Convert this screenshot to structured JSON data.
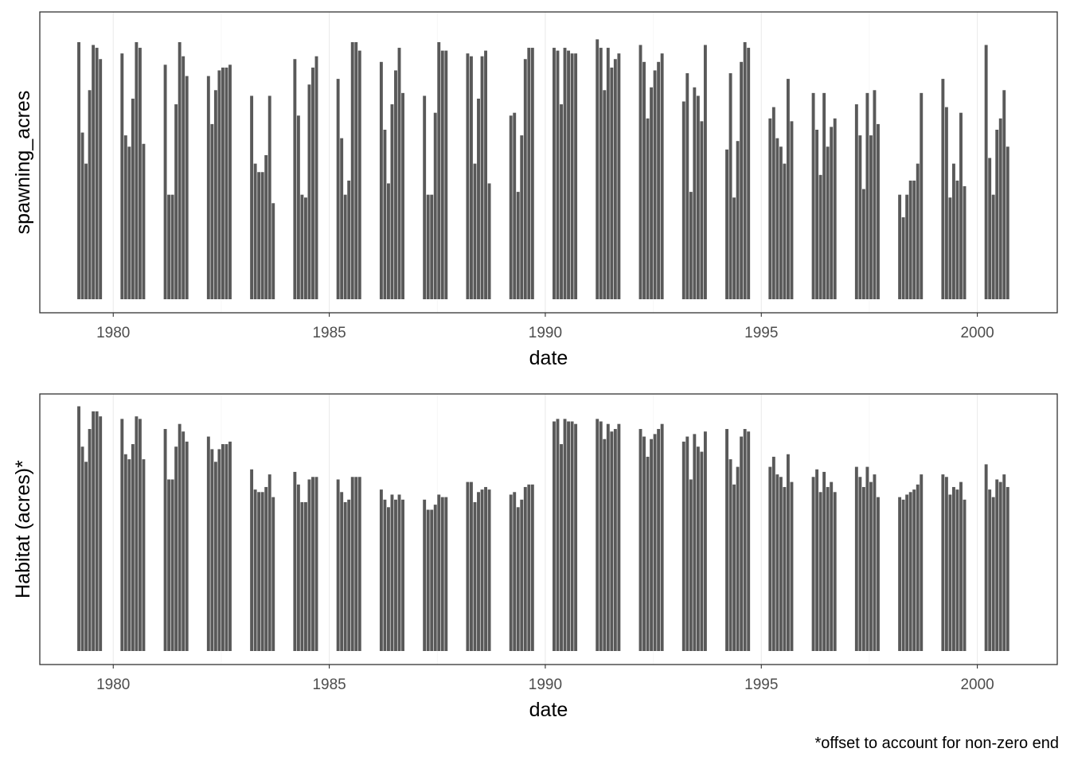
{
  "chart_data": [
    {
      "type": "bar",
      "panel": "top",
      "xlabel": "date",
      "ylabel": "spawning_acres",
      "x_unit": "year",
      "xlim": [
        1978.3,
        2001.85
      ],
      "x_ticks": [
        1980,
        1985,
        1990,
        1995,
        2000
      ],
      "y_axis_ticks_shown": false,
      "grid": true,
      "bar_color": "#595959",
      "months": [
        3,
        4,
        5,
        6,
        7,
        8,
        9
      ],
      "years": [
        1979,
        1980,
        1981,
        1982,
        1983,
        1984,
        1985,
        1986,
        1987,
        1988,
        1989,
        1990,
        1991,
        1992,
        1993,
        1994,
        1995,
        1996,
        1997,
        1998,
        1999,
        2000
      ],
      "series": [
        {
          "year": 1979,
          "values": [
            91,
            59,
            48,
            74,
            90,
            89,
            85
          ]
        },
        {
          "year": 1980,
          "values": [
            87,
            58,
            54,
            71,
            91,
            89,
            55
          ]
        },
        {
          "year": 1981,
          "values": [
            83,
            37,
            37,
            69,
            91,
            86,
            79
          ]
        },
        {
          "year": 1982,
          "values": [
            79,
            62,
            74,
            81,
            82,
            82,
            83
          ]
        },
        {
          "year": 1983,
          "values": [
            72,
            48,
            45,
            45,
            51,
            72,
            34
          ]
        },
        {
          "year": 1984,
          "values": [
            85,
            65,
            37,
            36,
            76,
            82,
            86
          ]
        },
        {
          "year": 1985,
          "values": [
            78,
            57,
            37,
            42,
            91,
            91,
            88
          ]
        },
        {
          "year": 1986,
          "values": [
            84,
            60,
            41,
            69,
            81,
            89,
            73
          ]
        },
        {
          "year": 1987,
          "values": [
            72,
            37,
            37,
            66,
            91,
            88,
            88
          ]
        },
        {
          "year": 1988,
          "values": [
            87,
            86,
            48,
            71,
            86,
            88,
            41
          ]
        },
        {
          "year": 1989,
          "values": [
            65,
            66,
            38,
            58,
            85,
            89,
            89
          ]
        },
        {
          "year": 1990,
          "values": [
            89,
            88,
            69,
            89,
            88,
            87,
            87
          ]
        },
        {
          "year": 1991,
          "values": [
            92,
            89,
            74,
            89,
            82,
            85,
            87
          ]
        },
        {
          "year": 1992,
          "values": [
            90,
            84,
            64,
            75,
            81,
            84,
            87
          ]
        },
        {
          "year": 1993,
          "values": [
            70,
            80,
            38,
            75,
            72,
            63,
            90
          ]
        },
        {
          "year": 1994,
          "values": [
            53,
            80,
            36,
            56,
            84,
            91,
            89
          ]
        },
        {
          "year": 1995,
          "values": [
            64,
            68,
            57,
            54,
            48,
            78,
            63
          ]
        },
        {
          "year": 1996,
          "values": [
            73,
            60,
            44,
            73,
            54,
            61,
            64
          ]
        },
        {
          "year": 1997,
          "values": [
            69,
            58,
            39,
            73,
            58,
            74,
            62
          ]
        },
        {
          "year": 1998,
          "values": [
            37,
            29,
            37,
            42,
            42,
            48,
            73
          ]
        },
        {
          "year": 1999,
          "values": [
            78,
            68,
            36,
            48,
            42,
            66,
            40
          ]
        },
        {
          "year": 2000,
          "values": [
            90,
            50,
            37,
            60,
            64,
            74,
            54
          ]
        }
      ]
    },
    {
      "type": "bar",
      "panel": "bottom",
      "xlabel": "date",
      "ylabel": "Habitat (acres)*",
      "x_unit": "year",
      "xlim": [
        1978.3,
        2001.85
      ],
      "x_ticks": [
        1980,
        1985,
        1990,
        1995,
        2000
      ],
      "y_axis_ticks_shown": false,
      "grid": true,
      "bar_color": "#595959",
      "months": [
        3,
        4,
        5,
        6,
        7,
        8,
        9
      ],
      "years": [
        1979,
        1980,
        1981,
        1982,
        1983,
        1984,
        1985,
        1986,
        1987,
        1988,
        1989,
        1990,
        1991,
        1992,
        1993,
        1994,
        1995,
        1996,
        1997,
        1998,
        1999,
        2000
      ],
      "series": [
        {
          "year": 1979,
          "values": [
            97,
            81,
            75,
            88,
            95,
            95,
            93
          ]
        },
        {
          "year": 1980,
          "values": [
            92,
            78,
            76,
            82,
            93,
            92,
            76
          ]
        },
        {
          "year": 1981,
          "values": [
            88,
            68,
            68,
            81,
            90,
            87,
            83
          ]
        },
        {
          "year": 1982,
          "values": [
            85,
            80,
            75,
            80,
            82,
            82,
            83
          ]
        },
        {
          "year": 1983,
          "values": [
            72,
            64,
            63,
            63,
            65,
            70,
            61
          ]
        },
        {
          "year": 1984,
          "values": [
            71,
            66,
            59,
            59,
            68,
            69,
            69
          ]
        },
        {
          "year": 1985,
          "values": [
            68,
            63,
            59,
            60,
            69,
            69,
            69
          ]
        },
        {
          "year": 1986,
          "values": [
            64,
            60,
            57,
            62,
            60,
            62,
            60
          ]
        },
        {
          "year": 1987,
          "values": [
            60,
            56,
            56,
            58,
            62,
            61,
            61
          ]
        },
        {
          "year": 1988,
          "values": [
            67,
            67,
            59,
            63,
            64,
            65,
            64
          ]
        },
        {
          "year": 1989,
          "values": [
            62,
            63,
            57,
            60,
            65,
            66,
            66
          ]
        },
        {
          "year": 1990,
          "values": [
            91,
            92,
            82,
            92,
            91,
            91,
            90
          ]
        },
        {
          "year": 1991,
          "values": [
            92,
            91,
            84,
            90,
            87,
            88,
            90
          ]
        },
        {
          "year": 1992,
          "values": [
            88,
            85,
            77,
            84,
            86,
            88,
            90
          ]
        },
        {
          "year": 1993,
          "values": [
            83,
            85,
            68,
            86,
            81,
            79,
            87
          ]
        },
        {
          "year": 1994,
          "values": [
            88,
            76,
            66,
            73,
            85,
            88,
            87
          ]
        },
        {
          "year": 1995,
          "values": [
            73,
            77,
            70,
            69,
            65,
            78,
            67
          ]
        },
        {
          "year": 1996,
          "values": [
            69,
            72,
            63,
            71,
            65,
            67,
            63
          ]
        },
        {
          "year": 1997,
          "values": [
            73,
            69,
            65,
            73,
            67,
            70,
            61
          ]
        },
        {
          "year": 1998,
          "values": [
            61,
            60,
            62,
            63,
            64,
            66,
            70
          ]
        },
        {
          "year": 1999,
          "values": [
            70,
            69,
            62,
            65,
            64,
            67,
            60
          ]
        },
        {
          "year": 2000,
          "values": [
            74,
            64,
            61,
            68,
            67,
            70,
            65
          ]
        }
      ]
    }
  ],
  "caption": "*offset to account for non-zero end"
}
